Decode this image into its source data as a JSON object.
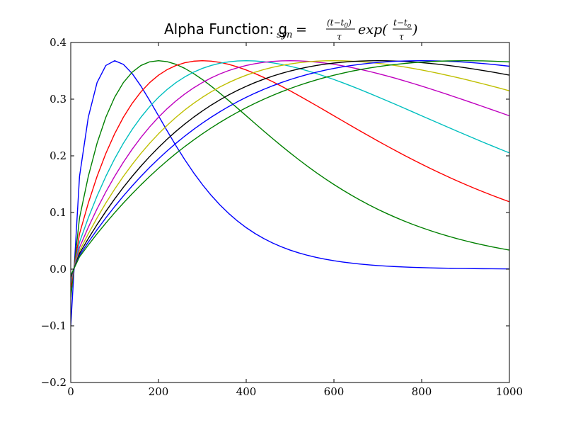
{
  "chart_data": {
    "type": "line",
    "title": {
      "text": "Alpha Function: g",
      "subscript": "syn",
      "equals": " = ",
      "frac1_num": "(t−t",
      "frac1_num_sub": "0",
      "frac1_num_close": ")",
      "frac1_den": "τ",
      "exp_text": "exp(",
      "frac2_num": "t−t",
      "frac2_num_sub": "o",
      "frac2_den": "τ",
      "close_paren": ")"
    },
    "xlabel": "",
    "ylabel": "",
    "xlim": [
      0,
      1000
    ],
    "ylim": [
      -0.2,
      0.4
    ],
    "xticks": [
      0,
      200,
      400,
      600,
      800,
      1000
    ],
    "xtick_labels": [
      "0",
      "200",
      "400",
      "600",
      "800",
      "1000"
    ],
    "yticks": [
      -0.2,
      -0.1,
      0.0,
      0.1,
      0.2,
      0.3,
      0.4
    ],
    "ytick_labels": [
      "−0.2",
      "−0.1",
      "0.0",
      "0.1",
      "0.2",
      "0.3",
      "0.4"
    ],
    "grid": false,
    "legend": "none",
    "t0": 0,
    "x": [
      0,
      20,
      40,
      60,
      80,
      100,
      120,
      140,
      160,
      180,
      200,
      220,
      240,
      260,
      280,
      300,
      320,
      340,
      360,
      380,
      400,
      420,
      440,
      460,
      480,
      500,
      520,
      540,
      560,
      580,
      600,
      620,
      640,
      660,
      680,
      700,
      720,
      740,
      760,
      780,
      800,
      820,
      840,
      860,
      880,
      900,
      920,
      940,
      960,
      980,
      1000
    ],
    "series": [
      {
        "tau": 100,
        "color": "#0000ff",
        "y_at_0": -0.1
      },
      {
        "tau": 200,
        "color": "#008000",
        "y_at_0": -0.05
      },
      {
        "tau": 300,
        "color": "#ff0000",
        "y_at_0": -0.0333
      },
      {
        "tau": 400,
        "color": "#00bfbf",
        "y_at_0": -0.025
      },
      {
        "tau": 500,
        "color": "#bf00bf",
        "y_at_0": -0.02
      },
      {
        "tau": 600,
        "color": "#bfbf00",
        "y_at_0": -0.0167
      },
      {
        "tau": 700,
        "color": "#000000",
        "y_at_0": -0.0143
      },
      {
        "tau": 800,
        "color": "#0000ff",
        "y_at_0": -0.0125
      },
      {
        "tau": 900,
        "color": "#008000",
        "y_at_0": -0.0111
      }
    ]
  }
}
